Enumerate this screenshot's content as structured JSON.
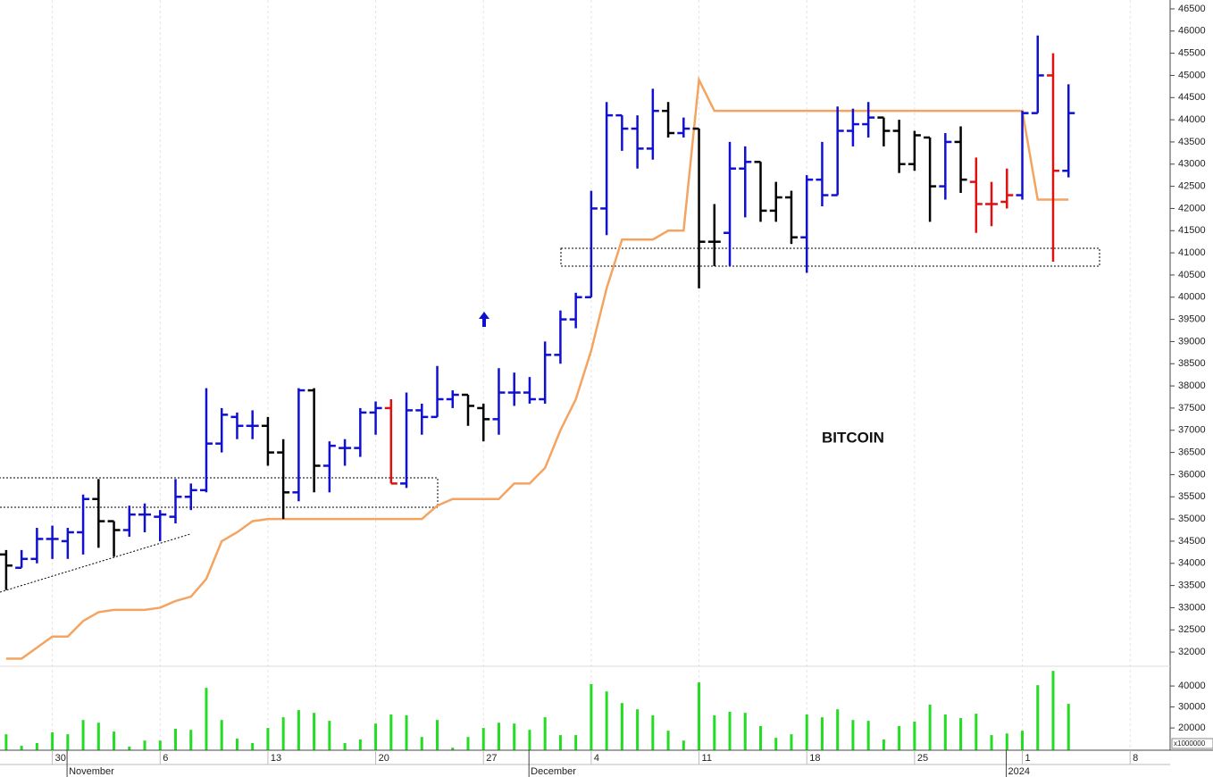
{
  "chart_data": {
    "type": "ohlc",
    "title": "BITCOIN",
    "xlim": [
      -0.4,
      75.6
    ],
    "ylim": [
      31700,
      46700
    ],
    "yticks": [
      32000,
      32500,
      33000,
      33500,
      34000,
      34500,
      35000,
      35500,
      36000,
      36500,
      37000,
      37500,
      38000,
      38500,
      39000,
      39500,
      40000,
      40500,
      41000,
      41500,
      42000,
      42500,
      43000,
      43500,
      44000,
      44500,
      45000,
      45500,
      46000,
      46500
    ],
    "xticks": [
      {
        "value": 3,
        "label": "30"
      },
      {
        "value": 10,
        "label": "6"
      },
      {
        "value": 17,
        "label": "13"
      },
      {
        "value": 24,
        "label": "20"
      },
      {
        "value": 31,
        "label": "27"
      },
      {
        "value": 38,
        "label": "4"
      },
      {
        "value": 45,
        "label": "11"
      },
      {
        "value": 52,
        "label": "18"
      },
      {
        "value": 59,
        "label": "25"
      },
      {
        "value": 66,
        "label": "1"
      },
      {
        "value": 73,
        "label": "8"
      }
    ],
    "month_ticks": [
      {
        "value": 5,
        "label": "November"
      },
      {
        "value": 35,
        "label": "December"
      },
      {
        "value": 66,
        "label": "2024"
      }
    ],
    "grid": true,
    "ohlc": {
      "open": [
        34200,
        33900,
        34100,
        34550,
        34500,
        34700,
        35450,
        34950,
        34750,
        35100,
        35050,
        35050,
        35500,
        35650,
        36700,
        37300,
        37100,
        37100,
        36500,
        35600,
        37900,
        36200,
        36600,
        36600,
        37400,
        37500,
        35800,
        37450,
        37300,
        37700,
        37800,
        37500,
        37250,
        37850,
        37850,
        37700,
        38700,
        39500,
        40000,
        42000,
        44100,
        43800,
        43350,
        44200,
        43700,
        43800,
        41250,
        41450,
        42900,
        43050,
        41950,
        42250,
        41350,
        42650,
        42300,
        43750,
        43900,
        44050,
        43750,
        43000,
        43600,
        42500,
        43500,
        42600,
        42100,
        42150,
        42300,
        44150,
        45000,
        42850
      ],
      "high": [
        34300,
        34300,
        34800,
        34850,
        34800,
        35550,
        35900,
        34950,
        35300,
        35350,
        35200,
        35900,
        35800,
        37950,
        37500,
        37400,
        37450,
        37300,
        36800,
        37950,
        37950,
        36750,
        36800,
        37500,
        37650,
        37700,
        37850,
        37600,
        38450,
        37900,
        37800,
        37600,
        38400,
        38300,
        38200,
        39000,
        39700,
        40100,
        42400,
        44400,
        44100,
        44100,
        44700,
        44400,
        44050,
        43800,
        42100,
        43500,
        43400,
        43050,
        42600,
        42400,
        42750,
        43500,
        44300,
        44250,
        44400,
        44050,
        44000,
        43750,
        43600,
        43700,
        43850,
        43150,
        42600,
        42900,
        44200,
        45900,
        45500,
        44800
      ],
      "low": [
        33400,
        33900,
        34000,
        34100,
        34100,
        34200,
        34350,
        34150,
        34600,
        34700,
        34500,
        34900,
        35200,
        35600,
        36500,
        36800,
        36800,
        36200,
        35000,
        35400,
        35600,
        35600,
        36200,
        36400,
        36900,
        35800,
        35700,
        36900,
        37300,
        37500,
        37100,
        36750,
        36900,
        37550,
        37600,
        37600,
        38500,
        39300,
        40000,
        41400,
        43300,
        42900,
        43100,
        43600,
        43600,
        40200,
        40700,
        40700,
        41800,
        41700,
        41700,
        41200,
        40550,
        42050,
        42300,
        43400,
        43600,
        43400,
        42800,
        42850,
        41700,
        42200,
        42350,
        41450,
        41600,
        42000,
        42200,
        44150,
        40800,
        42700
      ],
      "close": [
        33950,
        34100,
        34550,
        34550,
        34700,
        35450,
        34950,
        34750,
        35100,
        35100,
        35100,
        35500,
        35650,
        36700,
        37350,
        37100,
        37100,
        36500,
        35600,
        37900,
        36200,
        36650,
        36600,
        37400,
        37500,
        35800,
        37450,
        37300,
        37700,
        37800,
        37550,
        37250,
        37850,
        37850,
        37700,
        38700,
        39500,
        40000,
        42000,
        44100,
        43800,
        43350,
        44200,
        43700,
        43800,
        41250,
        41250,
        42900,
        43050,
        41950,
        42250,
        41350,
        42650,
        42300,
        43750,
        43900,
        44050,
        43750,
        43000,
        43650,
        42500,
        43500,
        42650,
        42100,
        42100,
        42300,
        44150,
        45000,
        42850,
        44150
      ],
      "colors": [
        "#000000",
        "#1010d0",
        "#1010d0",
        "#1010d0",
        "#1010d0",
        "#1010d0",
        "#000000",
        "#000000",
        "#1010d0",
        "#1010d0",
        "#1010d0",
        "#1010d0",
        "#1010d0",
        "#1010d0",
        "#1010d0",
        "#1010d0",
        "#1010d0",
        "#000000",
        "#000000",
        "#1010d0",
        "#000000",
        "#1010d0",
        "#1010d0",
        "#1010d0",
        "#1010d0",
        "#e01010",
        "#1010d0",
        "#1010d0",
        "#1010d0",
        "#1010d0",
        "#000000",
        "#000000",
        "#1010d0",
        "#1010d0",
        "#1010d0",
        "#1010d0",
        "#1010d0",
        "#1010d0",
        "#1010d0",
        "#1010d0",
        "#1010d0",
        "#1010d0",
        "#1010d0",
        "#000000",
        "#1010d0",
        "#000000",
        "#000000",
        "#1010d0",
        "#1010d0",
        "#000000",
        "#000000",
        "#000000",
        "#1010d0",
        "#1010d0",
        "#1010d0",
        "#1010d0",
        "#1010d0",
        "#000000",
        "#000000",
        "#000000",
        "#000000",
        "#1010d0",
        "#000000",
        "#e01010",
        "#e01010",
        "#e01010",
        "#1010d0",
        "#1010d0",
        "#e01010",
        "#1010d0"
      ]
    },
    "stop_line": {
      "color": "#f4a460",
      "values": [
        31850,
        31850,
        32100,
        32350,
        32350,
        32700,
        32900,
        32950,
        32950,
        32950,
        33000,
        33150,
        33250,
        33650,
        34500,
        34700,
        34950,
        35000,
        35000,
        35000,
        35000,
        35000,
        35000,
        35000,
        35000,
        35000,
        35000,
        35000,
        35300,
        35450,
        35450,
        35450,
        35450,
        35800,
        35800,
        36150,
        37000,
        37700,
        38800,
        40200,
        41300,
        41300,
        41300,
        41500,
        41500,
        44900,
        44200,
        44200,
        44200,
        44200,
        44200,
        44200,
        44200,
        44200,
        44200,
        44200,
        44200,
        44200,
        44200,
        44200,
        44200,
        44200,
        44200,
        44200,
        44200,
        44200,
        44200,
        42200,
        42200,
        42200
      ]
    },
    "volume": {
      "color": "#22dd22",
      "ylim": [
        9400,
        47700
      ],
      "yticks": [
        20000,
        30000,
        40000
      ],
      "unit_label": "x1000000",
      "values": [
        17000,
        11500,
        12800,
        17900,
        17000,
        23800,
        22500,
        18300,
        11100,
        14000,
        14000,
        19600,
        19100,
        39100,
        23800,
        14900,
        12800,
        20000,
        25100,
        28500,
        27200,
        23400,
        12800,
        14500,
        22100,
        26400,
        26000,
        15700,
        23800,
        10600,
        15700,
        20000,
        22500,
        22100,
        19100,
        25100,
        16600,
        16600,
        40900,
        37400,
        31900,
        28900,
        26000,
        18700,
        14000,
        41700,
        26000,
        27700,
        27200,
        20900,
        15300,
        17000,
        26400,
        25100,
        28900,
        23800,
        23400,
        14500,
        20900,
        23000,
        31100,
        26400,
        24700,
        26800,
        16600,
        17400,
        18700,
        40400,
        47200,
        31500
      ]
    }
  }
}
